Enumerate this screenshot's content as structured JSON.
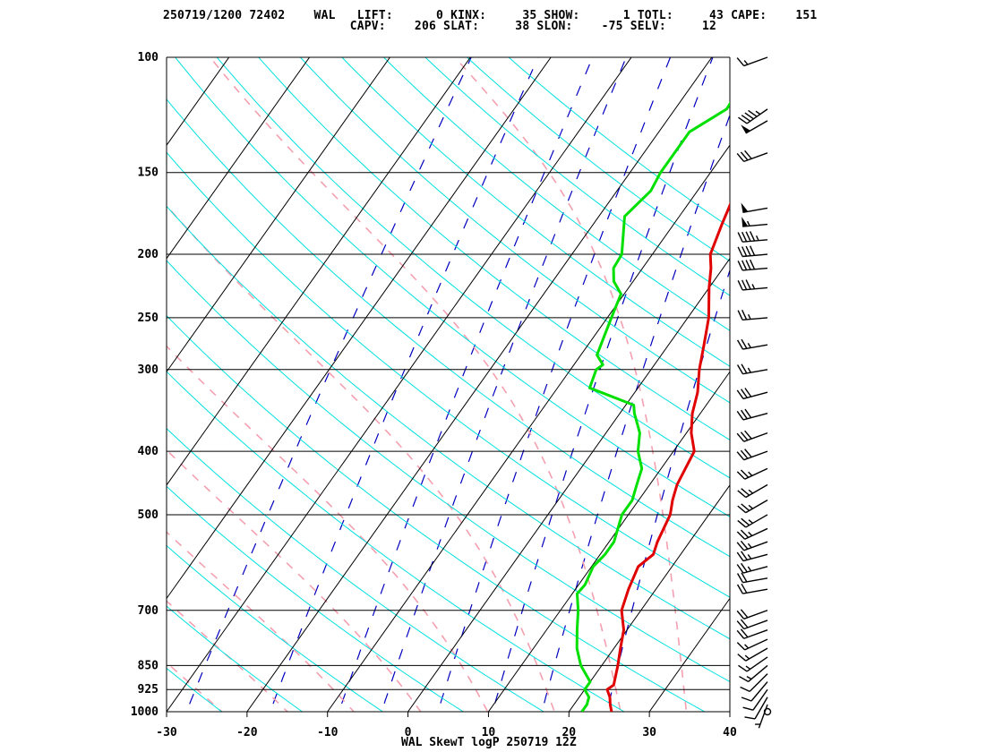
{
  "header": {
    "line1": "250719/1200 72402    WAL   LIFT:      0 KINX:     35 SHOW:      1 TOTL:     43 CAPE:    151",
    "line2": "                          CAPV:    206 SLAT:     38 SLON:    -75 SELV:     12"
  },
  "footer": "WAL SkewT logP 250719 12Z",
  "colors": {
    "temperature": "#e00000",
    "dewpoint": "#00e000",
    "isotherm": "#000000",
    "dry_adiabat": "#00e0e0",
    "moist_adiabat": "#f4a0b0",
    "mixing_ratio": "#0000c0",
    "wind_barb": "#000000"
  },
  "chart_data": {
    "type": "skewt",
    "title": "WAL SkewT logP 250719 12Z",
    "x_ticks": [
      -30,
      -20,
      -10,
      0,
      10,
      20,
      30,
      40
    ],
    "xlim": [
      -30,
      40
    ],
    "pressure_ticks": [
      100,
      150,
      200,
      250,
      300,
      400,
      500,
      700,
      850,
      925,
      1000
    ],
    "ylim": [
      1000,
      100
    ],
    "y_scale": "log",
    "grid": true,
    "temperature": [
      [
        1000,
        25.3
      ],
      [
        975,
        24.5
      ],
      [
        950,
        23.8
      ],
      [
        925,
        22.8
      ],
      [
        910,
        23.2
      ],
      [
        850,
        22.0
      ],
      [
        800,
        20.8
      ],
      [
        750,
        19.6
      ],
      [
        700,
        17.6
      ],
      [
        650,
        16.6
      ],
      [
        600,
        15.8
      ],
      [
        575,
        16.6
      ],
      [
        550,
        16.0
      ],
      [
        500,
        15.2
      ],
      [
        475,
        14.2
      ],
      [
        450,
        13.4
      ],
      [
        425,
        13.0
      ],
      [
        400,
        12.6
      ],
      [
        375,
        10.6
      ],
      [
        350,
        9.0
      ],
      [
        325,
        7.8
      ],
      [
        300,
        6.0
      ],
      [
        275,
        4.4
      ],
      [
        250,
        2.6
      ],
      [
        225,
        0.0
      ],
      [
        210,
        -1.5
      ],
      [
        200,
        -2.8
      ],
      [
        180,
        -4.0
      ],
      [
        160,
        -5.2
      ],
      [
        150,
        -5.4
      ],
      [
        140,
        -6.6
      ],
      [
        130,
        -8.0
      ],
      [
        125,
        -6.8
      ],
      [
        110,
        -6.4
      ],
      [
        105,
        -5.2
      ],
      [
        100,
        -4.2
      ]
    ],
    "dewpoint": [
      [
        1000,
        21.6
      ],
      [
        975,
        21.6
      ],
      [
        950,
        21.2
      ],
      [
        925,
        20.0
      ],
      [
        900,
        20.0
      ],
      [
        850,
        17.4
      ],
      [
        800,
        15.4
      ],
      [
        750,
        13.8
      ],
      [
        700,
        12.2
      ],
      [
        660,
        10.6
      ],
      [
        640,
        10.8
      ],
      [
        600,
        10.2
      ],
      [
        575,
        10.6
      ],
      [
        550,
        10.6
      ],
      [
        500,
        9.2
      ],
      [
        475,
        9.2
      ],
      [
        450,
        8.4
      ],
      [
        425,
        7.6
      ],
      [
        400,
        5.6
      ],
      [
        375,
        4.2
      ],
      [
        350,
        1.8
      ],
      [
        340,
        1.0
      ],
      [
        320,
        -6.0
      ],
      [
        300,
        -6.8
      ],
      [
        295,
        -6.4
      ],
      [
        285,
        -8.0
      ],
      [
        250,
        -9.5
      ],
      [
        230,
        -10.4
      ],
      [
        220,
        -12.4
      ],
      [
        210,
        -13.6
      ],
      [
        200,
        -13.8
      ],
      [
        175,
        -16.8
      ],
      [
        160,
        -15.8
      ],
      [
        150,
        -16.2
      ],
      [
        130,
        -16.2
      ],
      [
        120,
        -13.6
      ],
      [
        110,
        -13.8
      ],
      [
        105,
        -12.6
      ],
      [
        100,
        -10.2
      ]
    ],
    "wind_barbs": [
      {
        "p": 1000,
        "dir": 0,
        "kt": 0
      },
      {
        "p": 975,
        "dir": 200,
        "kt": 5
      },
      {
        "p": 950,
        "dir": 210,
        "kt": 10
      },
      {
        "p": 925,
        "dir": 215,
        "kt": 10
      },
      {
        "p": 900,
        "dir": 220,
        "kt": 10
      },
      {
        "p": 875,
        "dir": 225,
        "kt": 10
      },
      {
        "p": 850,
        "dir": 230,
        "kt": 15
      },
      {
        "p": 825,
        "dir": 235,
        "kt": 15
      },
      {
        "p": 800,
        "dir": 240,
        "kt": 15
      },
      {
        "p": 775,
        "dir": 245,
        "kt": 15
      },
      {
        "p": 750,
        "dir": 250,
        "kt": 20
      },
      {
        "p": 725,
        "dir": 250,
        "kt": 20
      },
      {
        "p": 700,
        "dir": 250,
        "kt": 20
      },
      {
        "p": 650,
        "dir": 260,
        "kt": 20
      },
      {
        "p": 625,
        "dir": 260,
        "kt": 20
      },
      {
        "p": 600,
        "dir": 255,
        "kt": 25
      },
      {
        "p": 575,
        "dir": 255,
        "kt": 25
      },
      {
        "p": 550,
        "dir": 250,
        "kt": 25
      },
      {
        "p": 525,
        "dir": 245,
        "kt": 25
      },
      {
        "p": 500,
        "dir": 240,
        "kt": 25
      },
      {
        "p": 475,
        "dir": 240,
        "kt": 25
      },
      {
        "p": 450,
        "dir": 240,
        "kt": 25
      },
      {
        "p": 425,
        "dir": 245,
        "kt": 25
      },
      {
        "p": 400,
        "dir": 250,
        "kt": 30
      },
      {
        "p": 375,
        "dir": 250,
        "kt": 30
      },
      {
        "p": 350,
        "dir": 255,
        "kt": 30
      },
      {
        "p": 325,
        "dir": 255,
        "kt": 30
      },
      {
        "p": 300,
        "dir": 260,
        "kt": 25
      },
      {
        "p": 275,
        "dir": 260,
        "kt": 25
      },
      {
        "p": 250,
        "dir": 265,
        "kt": 25
      },
      {
        "p": 225,
        "dir": 265,
        "kt": 35
      },
      {
        "p": 210,
        "dir": 265,
        "kt": 40
      },
      {
        "p": 200,
        "dir": 265,
        "kt": 40
      },
      {
        "p": 190,
        "dir": 265,
        "kt": 45
      },
      {
        "p": 180,
        "dir": 265,
        "kt": 55
      },
      {
        "p": 170,
        "dir": 260,
        "kt": 50
      },
      {
        "p": 140,
        "dir": 250,
        "kt": 30
      },
      {
        "p": 125,
        "dir": 240,
        "kt": 50
      },
      {
        "p": 120,
        "dir": 235,
        "kt": 45
      },
      {
        "p": 100,
        "dir": 250,
        "kt": 15
      }
    ]
  }
}
